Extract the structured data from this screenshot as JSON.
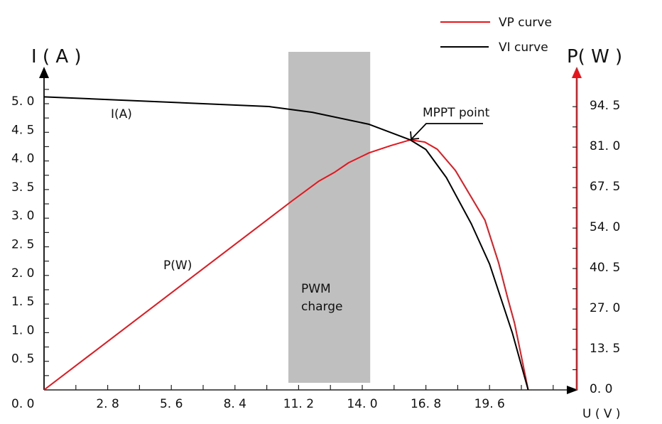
{
  "chart_data": {
    "type": "line",
    "xlabel": "U ( V )",
    "ylabel_left": "I ( A )",
    "ylabel_right": "P( W )",
    "xlim": [
      0,
      23.8
    ],
    "ylim_left": [
      0,
      5.5
    ],
    "ylim_right": [
      0,
      104
    ],
    "grid": false,
    "legend_position": "top-right",
    "x_ticks": [
      {
        "v": 2.8,
        "label": "2. 8"
      },
      {
        "v": 5.6,
        "label": "5. 6"
      },
      {
        "v": 8.4,
        "label": "8. 4"
      },
      {
        "v": 11.2,
        "label": "11. 2"
      },
      {
        "v": 14.0,
        "label": "14. 0"
      },
      {
        "v": 16.8,
        "label": "16. 8"
      },
      {
        "v": 19.6,
        "label": "19. 6"
      }
    ],
    "left_ticks": [
      {
        "v": 0,
        "label": "0. 0"
      },
      {
        "v": 0.5,
        "label": "0. 5"
      },
      {
        "v": 1.0,
        "label": "1. 0"
      },
      {
        "v": 1.5,
        "label": "1. 5"
      },
      {
        "v": 2.0,
        "label": "2. 0"
      },
      {
        "v": 2.5,
        "label": "2. 5"
      },
      {
        "v": 3.0,
        "label": "3. 0"
      },
      {
        "v": 3.5,
        "label": "3. 5"
      },
      {
        "v": 4.0,
        "label": "4. 0"
      },
      {
        "v": 4.5,
        "label": "4. 5"
      },
      {
        "v": 5.0,
        "label": "5. 0"
      }
    ],
    "right_ticks": [
      {
        "v": 0,
        "label": "0. 0"
      },
      {
        "v": 13.5,
        "label": "13. 5"
      },
      {
        "v": 27.0,
        "label": "27. 0"
      },
      {
        "v": 40.5,
        "label": "40. 5"
      },
      {
        "v": 54.0,
        "label": "54. 0"
      },
      {
        "v": 67.5,
        "label": "67. 5"
      },
      {
        "v": 81.0,
        "label": "81. 0"
      },
      {
        "v": 94.5,
        "label": "94. 5"
      }
    ],
    "series": [
      {
        "name": "VP curve",
        "axis": "right",
        "color": "#e8141b",
        "x": [
          0,
          10.9,
          12.1,
          12.8,
          13.4,
          14.3,
          15.25,
          16.1,
          16.75,
          17.3,
          18.1,
          18.75,
          19.4,
          20.0,
          20.4,
          20.7,
          21.3
        ],
        "y": [
          0,
          63.0,
          69.7,
          72.7,
          75.8,
          79.1,
          81.5,
          83.4,
          82.7,
          80.3,
          73.2,
          64.9,
          56.6,
          42.4,
          30.6,
          22.3,
          0
        ]
      },
      {
        "name": "VI curve",
        "axis": "left",
        "color": "#000000",
        "x": [
          0,
          9.9,
          11.8,
          14.3,
          16.1,
          16.8,
          17.7,
          18.8,
          19.6,
          20.6,
          21.3
        ],
        "y": [
          5.12,
          4.95,
          4.85,
          4.64,
          4.37,
          4.2,
          3.71,
          2.9,
          2.2,
          1.0,
          0
        ]
      }
    ],
    "shaded_region": {
      "x": [
        10.75,
        14.35
      ],
      "color": "#bfbfbf",
      "label_line1": "PWM",
      "label_line2": "charge"
    },
    "annotations": {
      "ia_label": "I(A)",
      "pw_label": "P(W)",
      "mppt_label": "MPPT point",
      "mppt": {
        "x": 16.1,
        "y_power": 83.4
      }
    },
    "colors": {
      "vp": "#e8141b",
      "vi": "#000000",
      "right_axis": "#e8141b"
    }
  }
}
